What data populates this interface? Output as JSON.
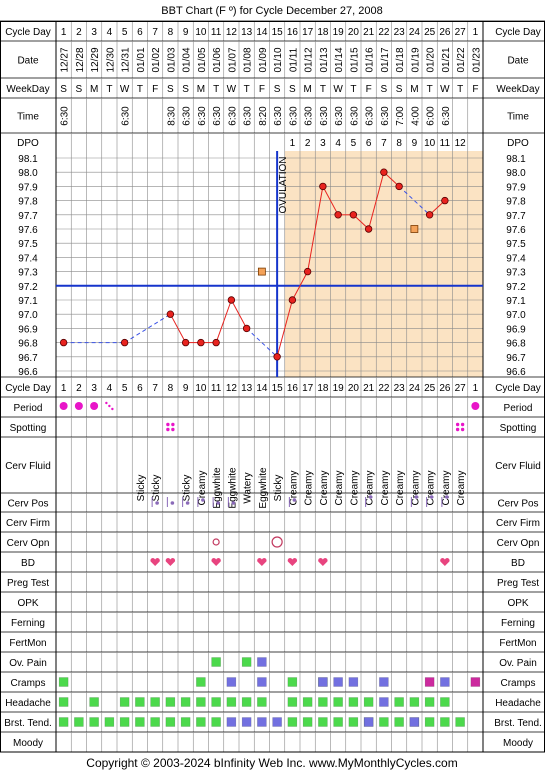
{
  "page": {
    "title": "BBT Chart (F º) for Cycle December 27, 2008",
    "footer": "Copyright © 2003-2024 bInfinity Web Inc.    www.MyMonthlyCycles.com",
    "ovulation_label": "OVULATION"
  },
  "labels": {
    "cycle_day": "Cycle Day",
    "date": "Date",
    "weekday": "WeekDay",
    "time": "Time",
    "dpo": "DPO",
    "period": "Period",
    "spotting": "Spotting",
    "cerv_fluid": "Cerv Fluid",
    "cerv_pos": "Cerv Pos",
    "cerv_firm": "Cerv Firm",
    "cerv_opn": "Cerv Opn",
    "bd": "BD",
    "preg_test": "Preg Test",
    "opk": "OPK",
    "ferning": "Ferning",
    "fertmon": "FertMon",
    "ov_pain": "Ov. Pain",
    "cramps": "Cramps",
    "headache": "Headache",
    "brst_tend": "Brst. Tend.",
    "moody": "Moody"
  },
  "colors": {
    "grid": "#8a8a8a",
    "frame": "#000000",
    "high_phase": "#fbe3c3",
    "line": "#e8231f",
    "missing_line": "#3b53e6",
    "point": "#e8231f",
    "coverline": "#1534cc",
    "ovulation": "#1534cc",
    "discarded": "#f4a259",
    "period": "#e815c8",
    "heart": "#e8447f",
    "green": "#4cd94c",
    "blue": "#7270e0",
    "magenta": "#cc2a9e",
    "pos": "#8a6ab8"
  },
  "chart_data": {
    "type": "line",
    "title": "BBT Chart (F º) for Cycle December 27, 2008",
    "cycle_days": [
      "1",
      "2",
      "3",
      "4",
      "5",
      "6",
      "7",
      "8",
      "9",
      "10",
      "11",
      "12",
      "13",
      "14",
      "15",
      "16",
      "17",
      "18",
      "19",
      "20",
      "21",
      "22",
      "23",
      "24",
      "25",
      "26",
      "27",
      "1"
    ],
    "dates": [
      "12/27",
      "12/28",
      "12/29",
      "12/30",
      "12/31",
      "01/01",
      "01/02",
      "01/03",
      "01/04",
      "01/05",
      "01/06",
      "01/07",
      "01/08",
      "01/09",
      "01/10",
      "01/11",
      "01/12",
      "01/13",
      "01/14",
      "01/15",
      "01/16",
      "01/17",
      "01/18",
      "01/19",
      "01/20",
      "01/21",
      "01/22",
      "01/23"
    ],
    "weekdays": [
      "S",
      "S",
      "M",
      "T",
      "W",
      "T",
      "F",
      "S",
      "S",
      "M",
      "T",
      "W",
      "T",
      "F",
      "S",
      "S",
      "M",
      "T",
      "W",
      "T",
      "F",
      "S",
      "S",
      "M",
      "T",
      "W",
      "T",
      "F"
    ],
    "times": [
      "6:30",
      "",
      "",
      "",
      "6:30",
      "",
      "",
      "8:30",
      "6:30",
      "6:30",
      "6:30",
      "6:30",
      "6:30",
      "8:20",
      "6:30",
      "6:30",
      "6:30",
      "6:30",
      "6:30",
      "6:30",
      "6:30",
      "6:30",
      "7:00",
      "4:00",
      "6:00",
      "6:30",
      "",
      ""
    ],
    "dpo": [
      "",
      "",
      "",
      "",
      "",
      "",
      "",
      "",
      "",
      "",
      "",
      "",
      "",
      "",
      "",
      "1",
      "2",
      "3",
      "4",
      "5",
      "6",
      "7",
      "8",
      "9",
      "10",
      "11",
      "12",
      ""
    ],
    "y_ticks": [
      "98.1",
      "98.0",
      "97.9",
      "97.8",
      "97.7",
      "97.6",
      "97.5",
      "97.4",
      "97.3",
      "97.2",
      "97.1",
      "97.0",
      "96.9",
      "96.8",
      "96.7",
      "96.6"
    ],
    "ylim": [
      96.6,
      98.1
    ],
    "temps": [
      96.8,
      null,
      null,
      null,
      96.8,
      null,
      null,
      97.0,
      96.8,
      96.8,
      96.8,
      97.1,
      96.9,
      null,
      96.7,
      97.1,
      97.3,
      97.9,
      97.7,
      97.7,
      97.6,
      98.0,
      97.9,
      null,
      97.7,
      97.8,
      null,
      null
    ],
    "discarded": [
      {
        "day_index": 13,
        "value": 97.3
      },
      {
        "day_index": 23,
        "value": 97.6
      }
    ],
    "coverline": 97.2,
    "ovulation_day_index": 14,
    "period": [
      3,
      3,
      3,
      1,
      0,
      0,
      0,
      0,
      0,
      0,
      0,
      0,
      0,
      0,
      0,
      0,
      0,
      0,
      0,
      0,
      0,
      0,
      0,
      0,
      0,
      0,
      0,
      3
    ],
    "spotting": [
      7,
      26
    ],
    "cerv_fluid": [
      "",
      "",
      "",
      "",
      "",
      "Sticky",
      "Sticky",
      "",
      "Sticky",
      "Creamy",
      "Eggwhite",
      "Eggwhite",
      "Watery",
      "Eggwhite",
      "Sticky",
      "Creamy",
      "Creamy",
      "Creamy",
      "Creamy",
      "Creamy",
      "Creamy",
      "Creamy",
      "Creamy",
      "Creamy",
      "Creamy",
      "Creamy",
      "Creamy",
      ""
    ],
    "cerv_pos": [
      {
        "day_index": 6,
        "mark": "low"
      },
      {
        "day_index": 7,
        "mark": "low"
      },
      {
        "day_index": 8,
        "mark": "low"
      },
      {
        "day_index": 9,
        "mark": "mid"
      },
      {
        "day_index": 10,
        "mark": "low"
      },
      {
        "day_index": 11,
        "mark": "low"
      },
      {
        "day_index": 15,
        "mark": "mid"
      },
      {
        "day_index": 20,
        "mark": "high"
      },
      {
        "day_index": 23,
        "mark": "high"
      },
      {
        "day_index": 24,
        "mark": "high"
      },
      {
        "day_index": 25,
        "mark": "high"
      }
    ],
    "cerv_opn": [
      {
        "day_index": 10,
        "size": "small"
      },
      {
        "day_index": 14,
        "size": "large"
      }
    ],
    "bd": [
      6,
      7,
      10,
      13,
      15,
      17,
      25
    ],
    "ov_pain": {
      "green": [
        10,
        12
      ],
      "blue": [
        13
      ]
    },
    "cramps": {
      "green": [
        0,
        9,
        15,
        17
      ],
      "blue": [
        11,
        13,
        17,
        18,
        19,
        21,
        25
      ],
      "magenta": [
        24,
        27
      ]
    },
    "headache": {
      "green": [
        0,
        2,
        4,
        5,
        6,
        7,
        8,
        9,
        10,
        11,
        12,
        13,
        15,
        16,
        17,
        18,
        19,
        20,
        22,
        23,
        24,
        25
      ],
      "blue": [
        21
      ]
    },
    "brst_tend": {
      "green": [
        0,
        1,
        2,
        3,
        4,
        5,
        6,
        7,
        8,
        9,
        10,
        15,
        16,
        17,
        18,
        19,
        20,
        21,
        22,
        23,
        24,
        25,
        26
      ],
      "blue": [
        11,
        12,
        13,
        14,
        20,
        23
      ]
    }
  }
}
